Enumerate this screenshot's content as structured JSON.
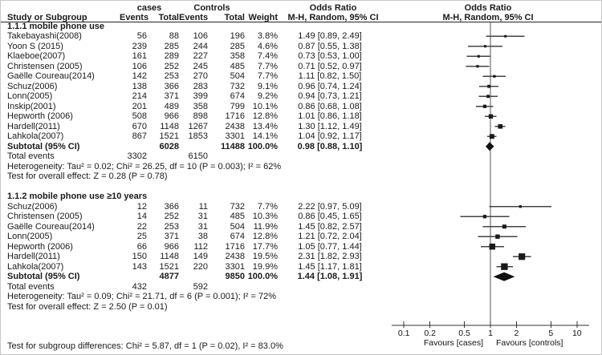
{
  "header": {
    "col_study": "Study or Subgroup",
    "group_cases": "cases",
    "group_controls": "Controls",
    "col_events": "Events",
    "col_total": "Total",
    "col_weight": "Weight",
    "or_title_left": "Odds Ratio",
    "or_sub_left": "M-H, Random, 95% CI",
    "or_title_right": "Odds Ratio",
    "or_sub_right": "M-H, Random, 95% CI"
  },
  "footer": {
    "subgroup_diff": "Test for subgroup differences: Chi² = 5.87, df = 1 (P = 0.02), I² = 83.0%"
  },
  "table": {
    "subgroups": [
      {
        "title": "1.1.1 mobile phone use",
        "studies": [
          {
            "label": "Takebayashi(2008)",
            "e1": "56",
            "t1": "88",
            "e2": "106",
            "t2": "196",
            "weight": "3.8%",
            "or_text": "1.49 [0.89, 2.49]"
          },
          {
            "label": "Yoon S (2015)",
            "e1": "239",
            "t1": "285",
            "e2": "244",
            "t2": "285",
            "weight": "4.6%",
            "or_text": "0.87 [0.55, 1.38]"
          },
          {
            "label": "Klaeboe(2007)",
            "e1": "161",
            "t1": "289",
            "e2": "227",
            "t2": "358",
            "weight": "7.4%",
            "or_text": "0.73 [0.53, 1.00]"
          },
          {
            "label": "Christensen (2005)",
            "e1": "106",
            "t1": "252",
            "e2": "245",
            "t2": "485",
            "weight": "7.7%",
            "or_text": "0.71 [0.52, 0.97]"
          },
          {
            "label": "Gaëlle Coureau(2014)",
            "e1": "142",
            "t1": "253",
            "e2": "270",
            "t2": "504",
            "weight": "7.7%",
            "or_text": "1.11 [0.82, 1.50]"
          },
          {
            "label": "Schuz(2006)",
            "e1": "138",
            "t1": "366",
            "e2": "283",
            "t2": "732",
            "weight": "9.1%",
            "or_text": "0.96 [0.74, 1.24]"
          },
          {
            "label": "Lonn(2005)",
            "e1": "214",
            "t1": "371",
            "e2": "399",
            "t2": "674",
            "weight": "9.2%",
            "or_text": "0.94 [0.73, 1.21]"
          },
          {
            "label": "Inskip(2001)",
            "e1": "201",
            "t1": "489",
            "e2": "358",
            "t2": "799",
            "weight": "10.1%",
            "or_text": "0.86 [0.68, 1.08]"
          },
          {
            "label": "Hepworth (2006)",
            "e1": "508",
            "t1": "966",
            "e2": "898",
            "t2": "1716",
            "weight": "12.8%",
            "or_text": "1.01 [0.86, 1.18]"
          },
          {
            "label": "Hardell(2011)",
            "e1": "670",
            "t1": "1148",
            "e2": "1267",
            "t2": "2438",
            "weight": "13.4%",
            "or_text": "1.30 [1.12, 1.49]"
          },
          {
            "label": "Lahkola(2007)",
            "e1": "867",
            "t1": "1521",
            "e2": "1853",
            "t2": "3301",
            "weight": "14.1%",
            "or_text": "1.04 [0.92, 1.17]"
          }
        ],
        "subtotal": {
          "label": "Subtotal (95% CI)",
          "t1": "6028",
          "t2": "11488",
          "weight": "100.0%",
          "or_text": "0.98 [0.88, 1.10]"
        },
        "total_events": {
          "label": "Total events",
          "e1": "3302",
          "e2": "6150"
        },
        "heterogeneity": "Heterogeneity: Tau² = 0.02; Chi² = 26.25, df = 10 (P = 0.003); I² = 62%",
        "overall": "Test for overall effect: Z = 0.28 (P = 0.78)"
      },
      {
        "title": "1.1.2 mobile phone use ≥10 years",
        "studies": [
          {
            "label": "Schuz(2006)",
            "e1": "12",
            "t1": "366",
            "e2": "11",
            "t2": "732",
            "weight": "7.7%",
            "or_text": "2.22 [0.97, 5.09]"
          },
          {
            "label": "Christensen (2005)",
            "e1": "14",
            "t1": "252",
            "e2": "31",
            "t2": "485",
            "weight": "10.3%",
            "or_text": "0.86 [0.45, 1.65]"
          },
          {
            "label": "Gaëlle Coureau(2014)",
            "e1": "22",
            "t1": "253",
            "e2": "31",
            "t2": "504",
            "weight": "11.9%",
            "or_text": "1.45 [0.82, 2.57]"
          },
          {
            "label": "Lonn(2005)",
            "e1": "25",
            "t1": "371",
            "e2": "38",
            "t2": "674",
            "weight": "12.8%",
            "or_text": "1.21 [0.72, 2.04]"
          },
          {
            "label": "Hepworth (2006)",
            "e1": "66",
            "t1": "966",
            "e2": "112",
            "t2": "1716",
            "weight": "17.7%",
            "or_text": "1.05 [0.77, 1.44]"
          },
          {
            "label": "Hardell(2011)",
            "e1": "150",
            "t1": "1148",
            "e2": "149",
            "t2": "2438",
            "weight": "19.5%",
            "or_text": "2.31 [1.82, 2.93]"
          },
          {
            "label": "Lahkola(2007)",
            "e1": "143",
            "t1": "1521",
            "e2": "220",
            "t2": "3301",
            "weight": "19.9%",
            "or_text": "1.45 [1.17, 1.81]"
          }
        ],
        "subtotal": {
          "label": "Subtotal (95% CI)",
          "t1": "4877",
          "t2": "9850",
          "weight": "100.0%",
          "or_text": "1.44 [1.08, 1.91]"
        },
        "total_events": {
          "label": "Total events",
          "e1": "432",
          "e2": "592"
        },
        "heterogeneity": "Heterogeneity: Tau² = 0.09; Chi² = 21.71, df = 6 (P = 0.001); I² = 72%",
        "overall": "Test for overall effect: Z = 2.50 (P = 0.01)"
      }
    ]
  },
  "chart_data": {
    "type": "scatter",
    "variant": "forest-plot",
    "effect_measure": "Odds Ratio, M-H, Random, 95% CI",
    "xscale": "log",
    "xlim": [
      0.1,
      10
    ],
    "xticks": [
      0.1,
      0.2,
      0.5,
      1,
      2,
      5,
      10
    ],
    "xlabel_left": "Favours [cases]",
    "xlabel_right": "Favours [controls]",
    "series": [
      {
        "name": "1.1.1 mobile phone use",
        "points": [
          {
            "study": "Takebayashi(2008)",
            "or": 1.49,
            "lo": 0.89,
            "hi": 2.49,
            "weight": 3.8
          },
          {
            "study": "Yoon S (2015)",
            "or": 0.87,
            "lo": 0.55,
            "hi": 1.38,
            "weight": 4.6
          },
          {
            "study": "Klaeboe(2007)",
            "or": 0.73,
            "lo": 0.53,
            "hi": 1.0,
            "weight": 7.4
          },
          {
            "study": "Christensen (2005)",
            "or": 0.71,
            "lo": 0.52,
            "hi": 0.97,
            "weight": 7.7
          },
          {
            "study": "Gaëlle Coureau(2014)",
            "or": 1.11,
            "lo": 0.82,
            "hi": 1.5,
            "weight": 7.7
          },
          {
            "study": "Schuz(2006)",
            "or": 0.96,
            "lo": 0.74,
            "hi": 1.24,
            "weight": 9.1
          },
          {
            "study": "Lonn(2005)",
            "or": 0.94,
            "lo": 0.73,
            "hi": 1.21,
            "weight": 9.2
          },
          {
            "study": "Inskip(2001)",
            "or": 0.86,
            "lo": 0.68,
            "hi": 1.08,
            "weight": 10.1
          },
          {
            "study": "Hepworth (2006)",
            "or": 1.01,
            "lo": 0.86,
            "hi": 1.18,
            "weight": 12.8
          },
          {
            "study": "Hardell(2011)",
            "or": 1.3,
            "lo": 1.12,
            "hi": 1.49,
            "weight": 13.4
          },
          {
            "study": "Lahkola(2007)",
            "or": 1.04,
            "lo": 0.92,
            "hi": 1.17,
            "weight": 14.1
          }
        ],
        "subtotal": {
          "or": 0.98,
          "lo": 0.88,
          "hi": 1.1
        }
      },
      {
        "name": "1.1.2 mobile phone use ≥10 years",
        "points": [
          {
            "study": "Schuz(2006)",
            "or": 2.22,
            "lo": 0.97,
            "hi": 5.09,
            "weight": 7.7
          },
          {
            "study": "Christensen (2005)",
            "or": 0.86,
            "lo": 0.45,
            "hi": 1.65,
            "weight": 10.3
          },
          {
            "study": "Gaëlle Coureau(2014)",
            "or": 1.45,
            "lo": 0.82,
            "hi": 2.57,
            "weight": 11.9
          },
          {
            "study": "Lonn(2005)",
            "or": 1.21,
            "lo": 0.72,
            "hi": 2.04,
            "weight": 12.8
          },
          {
            "study": "Hepworth (2006)",
            "or": 1.05,
            "lo": 0.77,
            "hi": 1.44,
            "weight": 17.7
          },
          {
            "study": "Hardell(2011)",
            "or": 2.31,
            "lo": 1.82,
            "hi": 2.93,
            "weight": 19.5
          },
          {
            "study": "Lahkola(2007)",
            "or": 1.45,
            "lo": 1.17,
            "hi": 1.81,
            "weight": 19.9
          }
        ],
        "subtotal": {
          "or": 1.44,
          "lo": 1.08,
          "hi": 1.91
        }
      }
    ]
  }
}
